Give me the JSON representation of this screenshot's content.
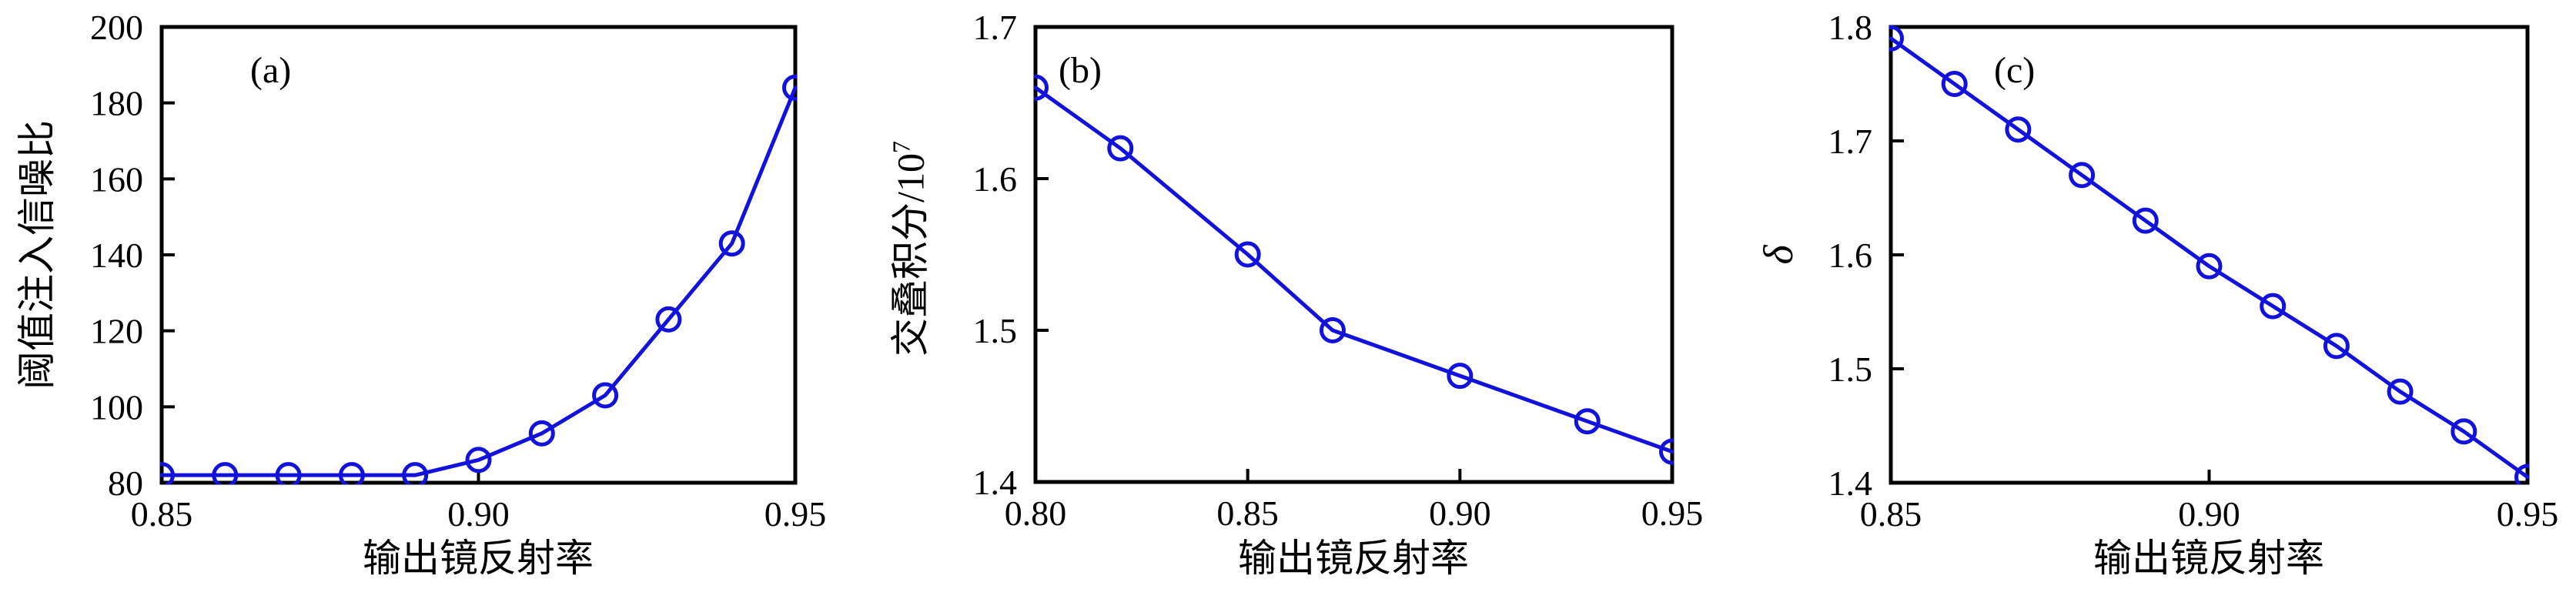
{
  "figure": {
    "background_color": "#ffffff",
    "axis_color": "#000000",
    "accent_color": "#1212dd"
  },
  "chart_data": [
    {
      "type": "line",
      "panel_label": "(a)",
      "title": "",
      "xlabel": "输出镜反射率",
      "ylabel": "阈值注入信噪比",
      "x": [
        0.85,
        0.86,
        0.87,
        0.88,
        0.89,
        0.9,
        0.91,
        0.92,
        0.93,
        0.94,
        0.95
      ],
      "y": [
        82,
        82,
        82,
        82,
        82,
        86,
        93,
        103,
        123,
        143,
        184
      ],
      "xlim": [
        0.85,
        0.95
      ],
      "ylim": [
        80,
        200
      ],
      "xticks": [
        0.85,
        0.9,
        0.95
      ],
      "xtick_labels": [
        "0.85",
        "0.90",
        "0.95"
      ],
      "yticks": [
        80,
        100,
        120,
        140,
        160,
        180,
        200
      ],
      "ytick_labels": [
        "80",
        "100",
        "120",
        "140",
        "160",
        "180",
        "200"
      ],
      "grid": false,
      "legend_position": "none",
      "marker": "open-circle",
      "line_color": "#1212dd"
    },
    {
      "type": "line",
      "panel_label": "(b)",
      "title": "",
      "xlabel": "输出镜反射率",
      "ylabel": "交叠积分/10⁷",
      "ylabel_base": "交叠积分/10",
      "ylabel_sup": "7",
      "x": [
        0.8,
        0.82,
        0.85,
        0.87,
        0.9,
        0.93,
        0.95
      ],
      "y": [
        1.66,
        1.62,
        1.55,
        1.5,
        1.47,
        1.44,
        1.42
      ],
      "xlim": [
        0.8,
        0.95
      ],
      "ylim": [
        1.4,
        1.7
      ],
      "xticks": [
        0.8,
        0.85,
        0.9,
        0.95
      ],
      "xtick_labels": [
        "0.80",
        "0.85",
        "0.90",
        "0.95"
      ],
      "yticks": [
        1.4,
        1.5,
        1.6,
        1.7
      ],
      "ytick_labels": [
        "1.4",
        "1.5",
        "1.6",
        "1.7"
      ],
      "grid": false,
      "legend_position": "none",
      "marker": "open-circle",
      "line_color": "#1212dd"
    },
    {
      "type": "line",
      "panel_label": "(c)",
      "title": "",
      "xlabel": "输出镜反射率",
      "ylabel": "δ",
      "x": [
        0.85,
        0.86,
        0.87,
        0.88,
        0.89,
        0.9,
        0.91,
        0.92,
        0.93,
        0.94,
        0.95
      ],
      "y": [
        1.79,
        1.75,
        1.71,
        1.67,
        1.63,
        1.59,
        1.555,
        1.52,
        1.48,
        1.445,
        1.405
      ],
      "xlim": [
        0.85,
        0.95
      ],
      "ylim": [
        1.4,
        1.8
      ],
      "xticks": [
        0.85,
        0.9,
        0.95
      ],
      "xtick_labels": [
        "0.85",
        "0.90",
        "0.95"
      ],
      "yticks": [
        1.4,
        1.5,
        1.6,
        1.7,
        1.8
      ],
      "ytick_labels": [
        "1.4",
        "1.5",
        "1.6",
        "1.7",
        "1.8"
      ],
      "grid": false,
      "legend_position": "none",
      "marker": "open-circle",
      "line_color": "#1212dd"
    }
  ]
}
